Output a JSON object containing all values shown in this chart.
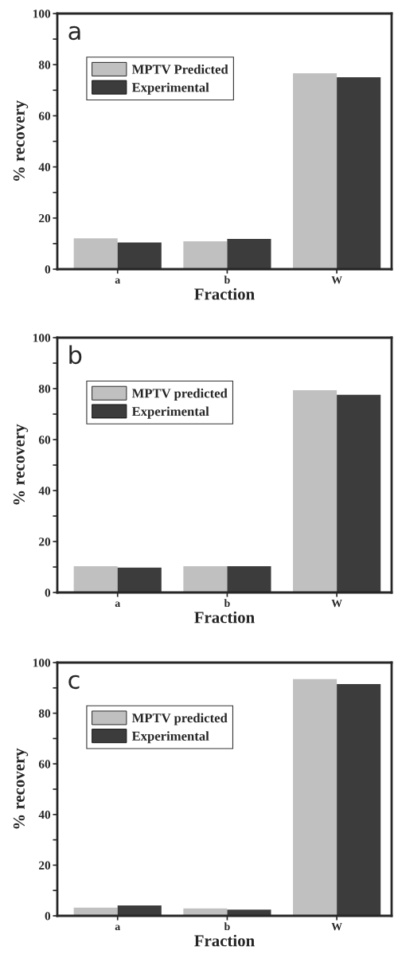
{
  "chart_data": [
    {
      "type": "bar",
      "annotations": [
        "a"
      ],
      "categories": [
        "a",
        "b",
        "W"
      ],
      "xlabel": "Fraction",
      "ylabel": "% recovery",
      "ylim": [
        0,
        100
      ],
      "yticks": [
        0,
        {
          "value": 10,
          "label": null
        },
        20,
        {
          "value": 30,
          "label": null
        },
        40,
        {
          "value": 50,
          "label": null
        },
        60,
        {
          "value": 70,
          "label": null
        },
        80,
        {
          "value": 90,
          "label": null
        },
        100
      ],
      "legend": "top left",
      "series": [
        {
          "name": "MPTV Predicted",
          "color": "#c0c0c0",
          "values": [
            12.1,
            10.9,
            76.6
          ]
        },
        {
          "name": "Experimental",
          "color": "#3c3c3c",
          "values": [
            10.4,
            11.8,
            75.1
          ]
        }
      ]
    },
    {
      "type": "bar",
      "annotations": [
        "b"
      ],
      "categories": [
        "a",
        "b",
        "W"
      ],
      "xlabel": "Fraction",
      "ylabel": "% recovery",
      "ylim": [
        0,
        100
      ],
      "yticks": [
        0,
        {
          "value": 10,
          "label": null
        },
        20,
        {
          "value": 30,
          "label": null
        },
        40,
        {
          "value": 50,
          "label": null
        },
        60,
        {
          "value": 70,
          "label": null
        },
        80,
        {
          "value": 90,
          "label": null
        },
        100
      ],
      "legend": "top left",
      "series": [
        {
          "name": "MPTV predicted",
          "color": "#c0c0c0",
          "values": [
            10.3,
            10.3,
            79.4
          ]
        },
        {
          "name": "Experimental",
          "color": "#3c3c3c",
          "values": [
            9.8,
            10.3,
            77.6
          ]
        }
      ]
    },
    {
      "type": "bar",
      "annotations": [
        "c"
      ],
      "categories": [
        "a",
        "b",
        "W"
      ],
      "xlabel": "Fraction",
      "ylabel": "% recovery",
      "ylim": [
        0,
        100
      ],
      "yticks": [
        0,
        {
          "value": 10,
          "label": null
        },
        20,
        {
          "value": 30,
          "label": null
        },
        40,
        {
          "value": 50,
          "label": null
        },
        60,
        {
          "value": 70,
          "label": null
        },
        80,
        {
          "value": 90,
          "label": null
        },
        100
      ],
      "legend": "top left",
      "series": [
        {
          "name": "MPTV predicted",
          "color": "#c0c0c0",
          "values": [
            3.2,
            2.9,
            93.5
          ]
        },
        {
          "name": "Experimental",
          "color": "#3c3c3c",
          "values": [
            4.1,
            2.4,
            91.5
          ]
        }
      ]
    }
  ]
}
